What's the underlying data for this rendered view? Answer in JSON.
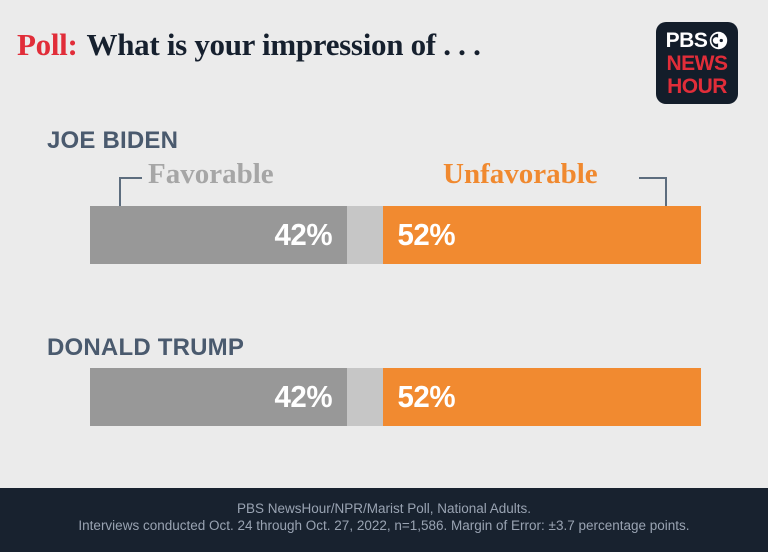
{
  "header": {
    "poll_prefix": "Poll:",
    "title": "What is your impression of . . ."
  },
  "logo": {
    "line1": "PBS",
    "line2": "NEWS",
    "line3": "HOUR"
  },
  "legend": {
    "favorable": "Favorable",
    "unfavorable": "Unfavorable"
  },
  "people": [
    {
      "name": "JOE BIDEN",
      "favorable_label": "42%",
      "unfavorable_label": "52%"
    },
    {
      "name": "DONALD TRUMP",
      "favorable_label": "42%",
      "unfavorable_label": "52%"
    }
  ],
  "bars": {
    "favorable_pct": 42,
    "gap_pct": 6,
    "unfavorable_pct": 52
  },
  "footer": {
    "line1": "PBS NewsHour/NPR/Marist Poll, National Adults.",
    "line2": "Interviews conducted Oct. 24 through Oct. 27, 2022, n=1,586. Margin of Error: ±3.7 percentage points."
  },
  "colors": {
    "background": "#ebebeb",
    "accent_red": "#e12d39",
    "title_navy": "#16202e",
    "heading_slate": "#4a5a6e",
    "favorable_gray": "#989898",
    "gap_gray": "#c6c6c6",
    "unfavorable_orange": "#f18a30",
    "footer_bg": "#18222f",
    "footer_text": "#99a3b2",
    "favorable_label_gray": "#a6a6a6"
  },
  "chart_data": {
    "type": "bar",
    "orientation": "horizontal-stacked",
    "title": "Poll: What is your impression of . . .",
    "categories": [
      "JOE BIDEN",
      "DONALD TRUMP"
    ],
    "series": [
      {
        "name": "Favorable",
        "values": [
          42,
          42
        ],
        "color": "#989898"
      },
      {
        "name": "(unlabeled gap)",
        "values": [
          6,
          6
        ],
        "color": "#c6c6c6"
      },
      {
        "name": "Unfavorable",
        "values": [
          52,
          52
        ],
        "color": "#f18a30"
      }
    ],
    "value_suffix": "%",
    "xlim": [
      0,
      100
    ],
    "grid": false,
    "legend_position": "above first bar, favorable left / unfavorable right with elbow connectors",
    "source": "PBS NewsHour/NPR/Marist Poll, National Adults.",
    "note": "Interviews conducted Oct. 24 through Oct. 27, 2022, n=1,586. Margin of Error: ±3.7 percentage points."
  }
}
